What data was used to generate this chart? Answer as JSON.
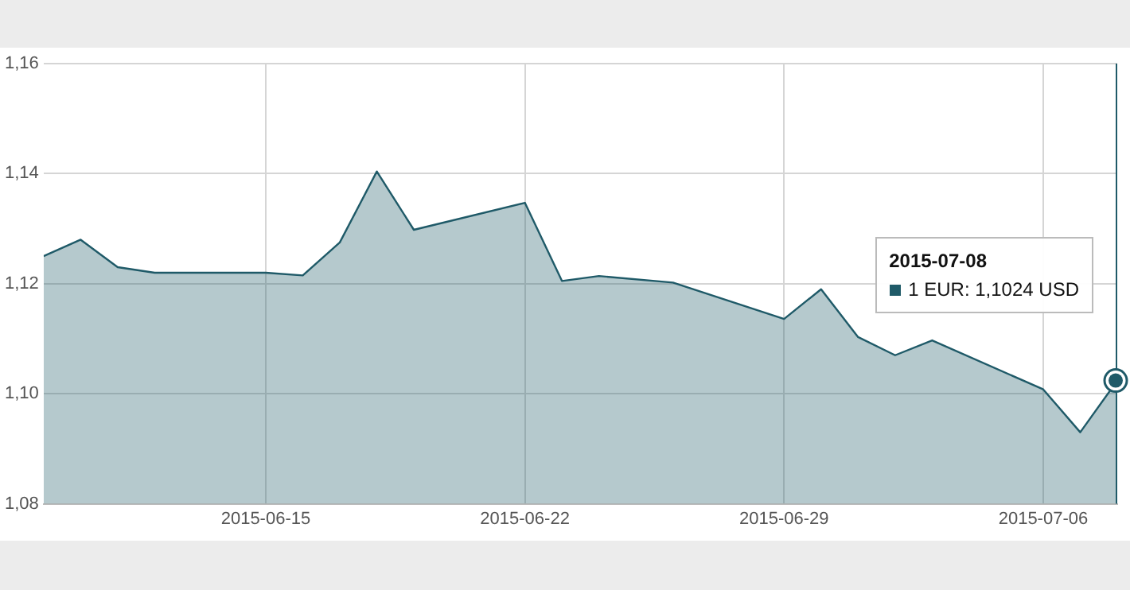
{
  "chart_data": {
    "type": "area",
    "x": [
      "2015-06-09",
      "2015-06-10",
      "2015-06-11",
      "2015-06-12",
      "2015-06-15",
      "2015-06-16",
      "2015-06-17",
      "2015-06-18",
      "2015-06-19",
      "2015-06-22",
      "2015-06-23",
      "2015-06-24",
      "2015-06-26",
      "2015-06-29",
      "2015-06-30",
      "2015-07-01",
      "2015-07-02",
      "2015-07-03",
      "2015-07-06",
      "2015-07-07",
      "2015-07-08"
    ],
    "series": [
      {
        "color": "#1f5a68",
        "values": [
          1.125,
          1.128,
          1.123,
          1.122,
          1.122,
          1.1215,
          1.1275,
          1.1404,
          1.1298,
          1.1347,
          1.1205,
          1.1214,
          1.1202,
          1.1136,
          1.119,
          1.1103,
          1.107,
          1.1097,
          1.1008,
          1.093,
          1.1024
        ]
      }
    ],
    "xlim": [
      "2015-06-09",
      "2015-07-08"
    ],
    "xticks": [
      "2015-06-15",
      "2015-06-22",
      "2015-06-29",
      "2015-07-06"
    ],
    "ylim": [
      1.08,
      1.16
    ],
    "yticks": [
      {
        "value": 1.08,
        "label": "1,08"
      },
      {
        "value": 1.1,
        "label": "1,10"
      },
      {
        "value": 1.12,
        "label": "1,12"
      },
      {
        "value": 1.14,
        "label": "1,14"
      },
      {
        "value": 1.16,
        "label": "1,16"
      }
    ],
    "grid": true,
    "legend": false,
    "marker": "none",
    "line_style": "solid",
    "ref_lines": [
      {
        "axis": "x",
        "value": "2015-07-08",
        "color": "#1f5a68"
      }
    ],
    "annotations": [
      "2015-07-08",
      "1 EUR: 1,1024 USD"
    ]
  }
}
